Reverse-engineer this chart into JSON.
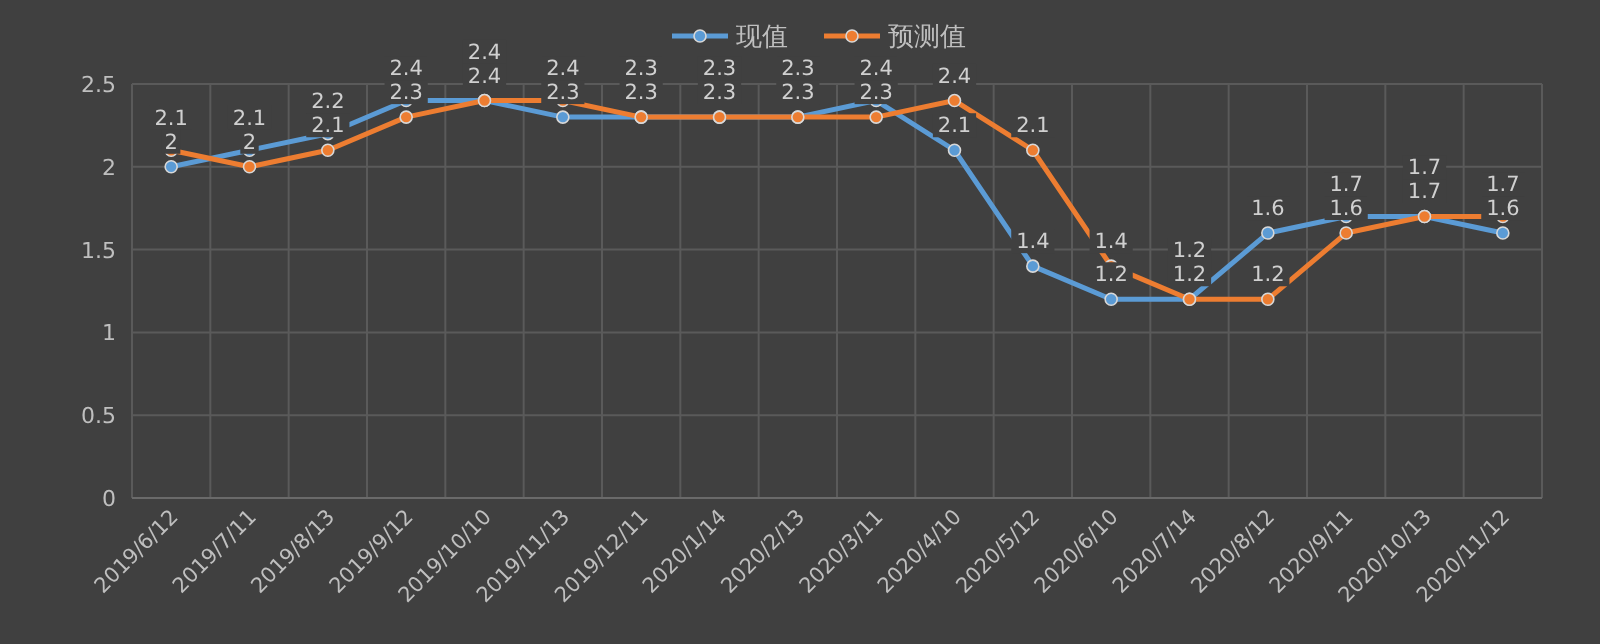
{
  "chart_data": {
    "type": "line",
    "categories": [
      "2019/6/12",
      "2019/7/11",
      "2019/8/13",
      "2019/9/12",
      "2019/10/10",
      "2019/11/13",
      "2019/12/11",
      "2020/1/14",
      "2020/2/13",
      "2020/3/11",
      "2020/4/10",
      "2020/5/12",
      "2020/6/10",
      "2020/7/14",
      "2020/8/12",
      "2020/9/11",
      "2020/10/13",
      "2020/11/12"
    ],
    "series": [
      {
        "name": "现值",
        "color": "#5b9bd5",
        "values": [
          2,
          2.1,
          2.2,
          2.4,
          2.4,
          2.3,
          2.3,
          2.3,
          2.3,
          2.4,
          2.1,
          1.4,
          1.2,
          1.2,
          1.6,
          1.7,
          1.7,
          1.6
        ]
      },
      {
        "name": "预测值",
        "color": "#ed7d31",
        "values": [
          2.1,
          2,
          2.1,
          2.3,
          2.4,
          2.4,
          2.3,
          2.3,
          2.3,
          2.3,
          2.4,
          2.1,
          1.4,
          1.2,
          1.2,
          1.6,
          1.7,
          1.7
        ]
      }
    ],
    "ylim": [
      0,
      2.5
    ],
    "yticks": [
      0,
      0.5,
      1,
      1.5,
      2,
      2.5
    ],
    "grid": true,
    "legend": "top",
    "marker": "circle",
    "line_style": "solid",
    "data_labels": true
  }
}
